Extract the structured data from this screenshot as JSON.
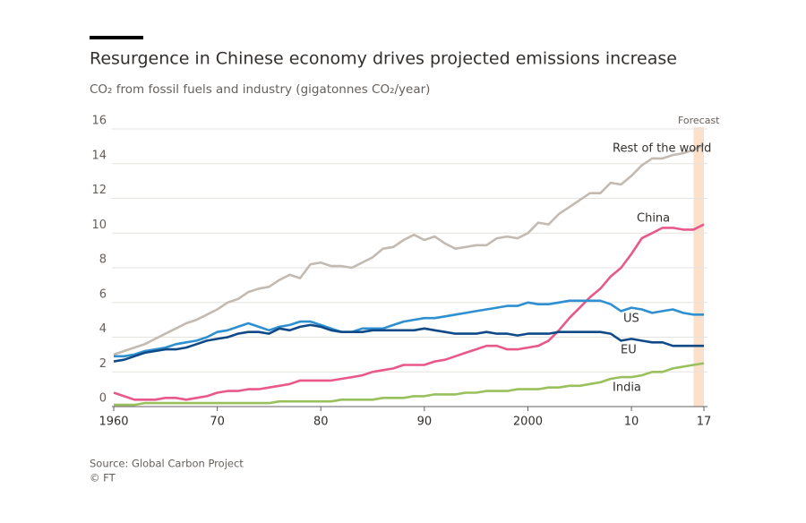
{
  "chart_data": {
    "type": "line",
    "title": "Resurgence in Chinese economy drives projected emissions increase",
    "subtitle": "CO₂ from fossil fuels and industry (gigatonnes CO₂/year)",
    "source": "Source: Global Carbon Project",
    "credit": "© FT",
    "forecast": {
      "label": "Forecast",
      "range": [
        2016,
        2017
      ]
    },
    "x": [
      1960,
      1961,
      1962,
      1963,
      1964,
      1965,
      1966,
      1967,
      1968,
      1969,
      1970,
      1971,
      1972,
      1973,
      1974,
      1975,
      1976,
      1977,
      1978,
      1979,
      1980,
      1981,
      1982,
      1983,
      1984,
      1985,
      1986,
      1987,
      1988,
      1989,
      1990,
      1991,
      1992,
      1993,
      1994,
      1995,
      1996,
      1997,
      1998,
      1999,
      2000,
      2001,
      2002,
      2003,
      2004,
      2005,
      2006,
      2007,
      2008,
      2009,
      2010,
      2011,
      2012,
      2013,
      2014,
      2015,
      2016,
      2017
    ],
    "xlim": [
      1960,
      2017
    ],
    "xticks": [
      1960,
      {
        "value": 1970,
        "label": "70"
      },
      {
        "value": 1980,
        "label": "80"
      },
      {
        "value": 1990,
        "label": "90"
      },
      2000,
      {
        "value": 2010,
        "label": "10"
      },
      {
        "value": 2017,
        "label": "17"
      }
    ],
    "ylim": [
      0,
      16
    ],
    "yticks": [
      0,
      2,
      4,
      6,
      8,
      10,
      12,
      14,
      16
    ],
    "grid": true,
    "series": [
      {
        "name": "Rest of the world",
        "color": "#c3bab1",
        "values": [
          3.0,
          3.2,
          3.4,
          3.6,
          3.9,
          4.2,
          4.5,
          4.8,
          5.0,
          5.3,
          5.6,
          6.0,
          6.2,
          6.6,
          6.8,
          6.9,
          7.3,
          7.6,
          7.4,
          8.2,
          8.3,
          8.1,
          8.1,
          8.0,
          8.3,
          8.6,
          9.1,
          9.2,
          9.6,
          9.9,
          9.6,
          9.8,
          9.4,
          9.1,
          9.2,
          9.3,
          9.3,
          9.7,
          9.8,
          9.7,
          10.0,
          10.6,
          10.5,
          11.1,
          11.5,
          11.9,
          12.3,
          12.3,
          12.9,
          12.8,
          13.3,
          13.9,
          14.3,
          14.3,
          14.5,
          14.6,
          14.8,
          15.1
        ]
      },
      {
        "name": "China",
        "color": "#e8588a",
        "values": [
          0.8,
          0.6,
          0.4,
          0.4,
          0.4,
          0.5,
          0.5,
          0.4,
          0.5,
          0.6,
          0.8,
          0.9,
          0.9,
          1.0,
          1.0,
          1.1,
          1.2,
          1.3,
          1.5,
          1.5,
          1.5,
          1.5,
          1.6,
          1.7,
          1.8,
          2.0,
          2.1,
          2.2,
          2.4,
          2.4,
          2.4,
          2.6,
          2.7,
          2.9,
          3.1,
          3.3,
          3.5,
          3.5,
          3.3,
          3.3,
          3.4,
          3.5,
          3.8,
          4.4,
          5.1,
          5.7,
          6.3,
          6.8,
          7.5,
          8.0,
          8.8,
          9.7,
          10.0,
          10.3,
          10.3,
          10.2,
          10.2,
          10.5
        ]
      },
      {
        "name": "US",
        "color": "#2e8fd1",
        "values": [
          2.9,
          2.9,
          3.0,
          3.2,
          3.3,
          3.4,
          3.6,
          3.7,
          3.8,
          4.0,
          4.3,
          4.4,
          4.6,
          4.8,
          4.6,
          4.4,
          4.6,
          4.7,
          4.9,
          4.9,
          4.7,
          4.5,
          4.3,
          4.3,
          4.5,
          4.5,
          4.5,
          4.7,
          4.9,
          5.0,
          5.1,
          5.1,
          5.2,
          5.3,
          5.4,
          5.5,
          5.6,
          5.7,
          5.8,
          5.8,
          6.0,
          5.9,
          5.9,
          6.0,
          6.1,
          6.1,
          6.1,
          6.1,
          5.9,
          5.5,
          5.7,
          5.6,
          5.4,
          5.5,
          5.6,
          5.4,
          5.3,
          5.3
        ]
      },
      {
        "name": "EU",
        "color": "#0f4a87",
        "values": [
          2.6,
          2.7,
          2.9,
          3.1,
          3.2,
          3.3,
          3.3,
          3.4,
          3.6,
          3.8,
          3.9,
          4.0,
          4.2,
          4.3,
          4.3,
          4.2,
          4.5,
          4.4,
          4.6,
          4.7,
          4.6,
          4.4,
          4.3,
          4.3,
          4.3,
          4.4,
          4.4,
          4.4,
          4.4,
          4.4,
          4.5,
          4.4,
          4.3,
          4.2,
          4.2,
          4.2,
          4.3,
          4.2,
          4.2,
          4.1,
          4.2,
          4.2,
          4.2,
          4.3,
          4.3,
          4.3,
          4.3,
          4.3,
          4.2,
          3.8,
          3.9,
          3.8,
          3.7,
          3.7,
          3.5,
          3.5,
          3.5,
          3.5
        ]
      },
      {
        "name": "India",
        "color": "#98c05c",
        "values": [
          0.1,
          0.1,
          0.1,
          0.2,
          0.2,
          0.2,
          0.2,
          0.2,
          0.2,
          0.2,
          0.2,
          0.2,
          0.2,
          0.2,
          0.2,
          0.2,
          0.3,
          0.3,
          0.3,
          0.3,
          0.3,
          0.3,
          0.4,
          0.4,
          0.4,
          0.4,
          0.5,
          0.5,
          0.5,
          0.6,
          0.6,
          0.7,
          0.7,
          0.7,
          0.8,
          0.8,
          0.9,
          0.9,
          0.9,
          1.0,
          1.0,
          1.0,
          1.1,
          1.1,
          1.2,
          1.2,
          1.3,
          1.4,
          1.6,
          1.7,
          1.7,
          1.8,
          2.0,
          2.0,
          2.2,
          2.3,
          2.4,
          2.5
        ]
      }
    ]
  }
}
